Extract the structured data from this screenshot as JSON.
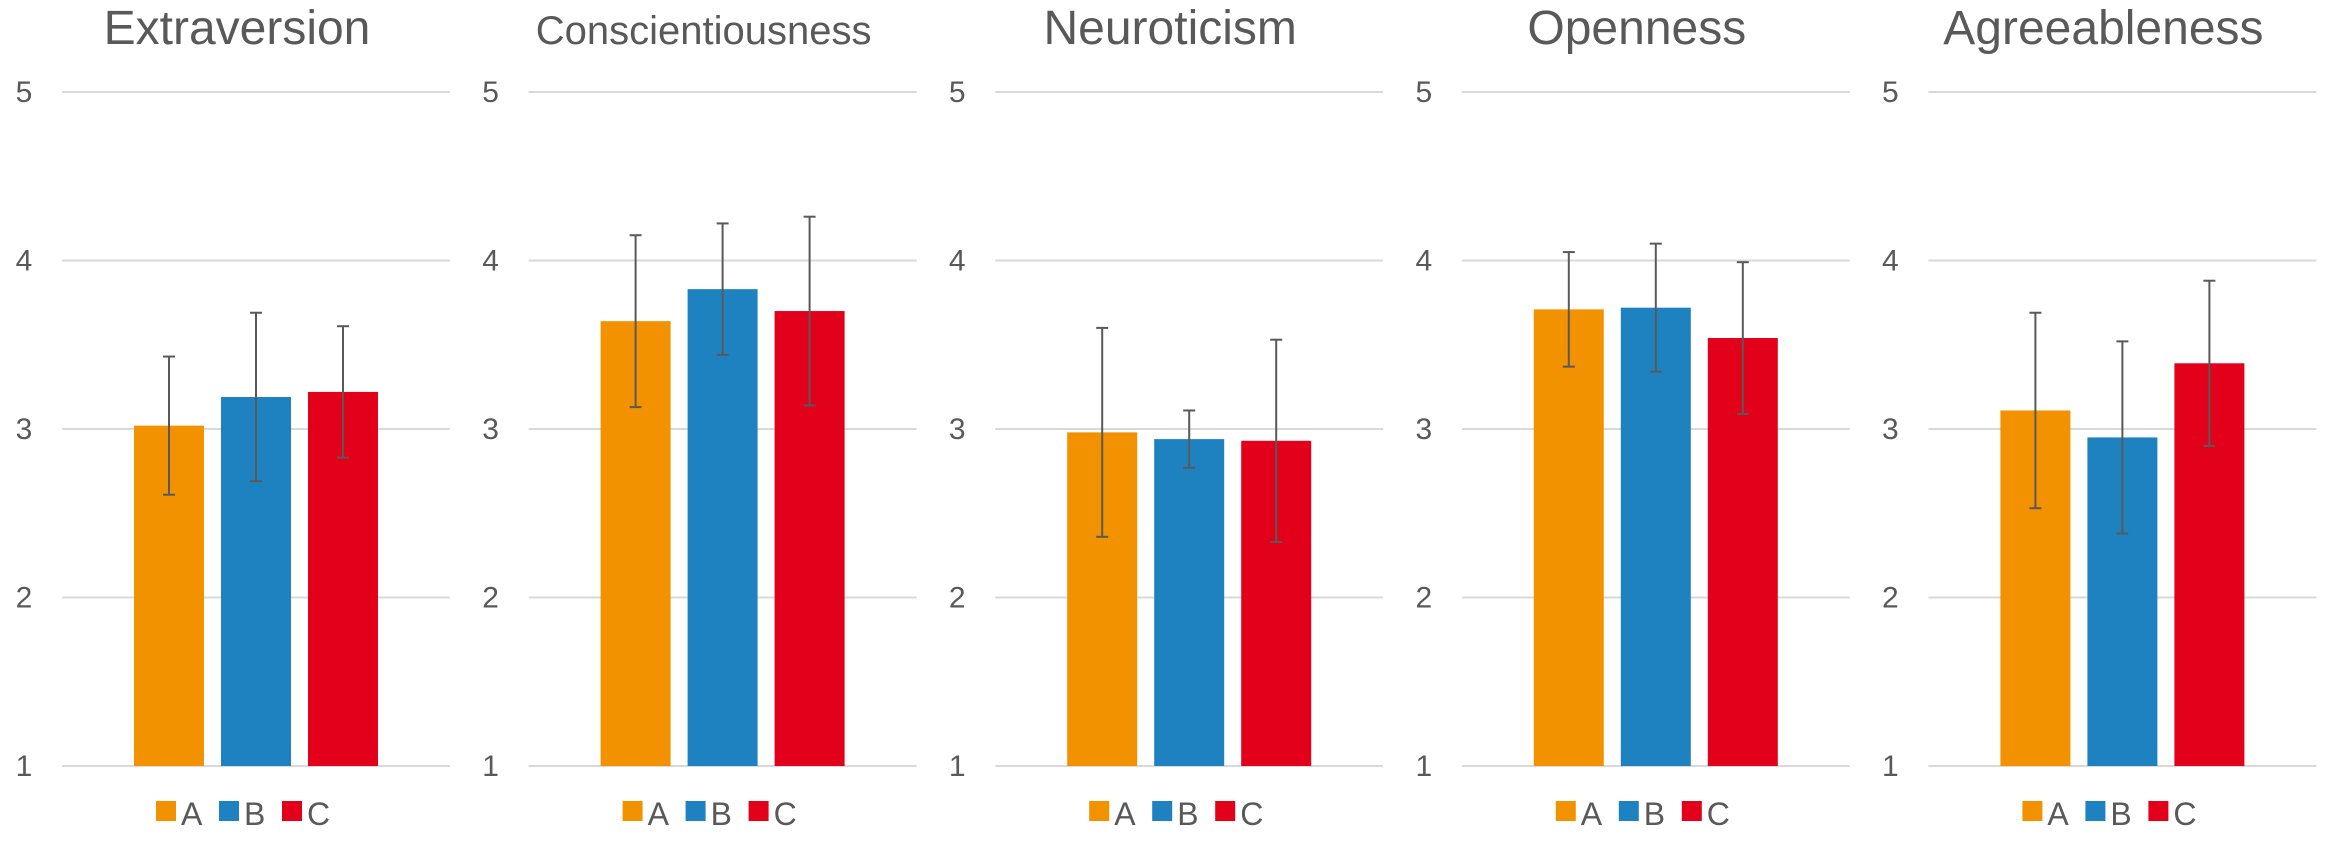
{
  "chart_data": [
    {
      "type": "bar",
      "title": "Extraversion",
      "categories": [
        "A",
        "B",
        "C"
      ],
      "values": [
        3.02,
        3.19,
        3.22
      ],
      "errors": [
        0.41,
        0.5,
        0.39
      ],
      "ylim": [
        1,
        5
      ],
      "yticks": [
        "1",
        "2",
        "3",
        "4",
        "5"
      ],
      "grid": true,
      "legend": "bottom"
    },
    {
      "type": "bar",
      "title": "Conscientiousness",
      "categories": [
        "A",
        "B",
        "C"
      ],
      "values": [
        3.64,
        3.83,
        3.7
      ],
      "errors": [
        0.51,
        0.39,
        0.56
      ],
      "ylim": [
        1,
        5
      ],
      "yticks": [
        "1",
        "2",
        "3",
        "4",
        "5"
      ],
      "grid": true,
      "legend": "bottom"
    },
    {
      "type": "bar",
      "title": "Neuroticism",
      "categories": [
        "A",
        "B",
        "C"
      ],
      "values": [
        2.98,
        2.94,
        2.93
      ],
      "errors": [
        0.62,
        0.17,
        0.6
      ],
      "ylim": [
        1,
        5
      ],
      "yticks": [
        "1",
        "2",
        "3",
        "4",
        "5"
      ],
      "grid": true,
      "legend": "bottom"
    },
    {
      "type": "bar",
      "title": "Openness",
      "categories": [
        "A",
        "B",
        "C"
      ],
      "values": [
        3.71,
        3.72,
        3.54
      ],
      "errors": [
        0.34,
        0.38,
        0.45
      ],
      "ylim": [
        1,
        5
      ],
      "yticks": [
        "1",
        "2",
        "3",
        "4",
        "5"
      ],
      "grid": true,
      "legend": "bottom"
    },
    {
      "type": "bar",
      "title": "Agreeableness",
      "categories": [
        "A",
        "B",
        "C"
      ],
      "values": [
        3.11,
        2.95,
        3.39
      ],
      "errors": [
        0.58,
        0.57,
        0.49
      ],
      "ylim": [
        1,
        5
      ],
      "yticks": [
        "1",
        "2",
        "3",
        "4",
        "5"
      ],
      "grid": true,
      "legend": "bottom"
    }
  ],
  "colors": {
    "A": "#F39200",
    "B": "#1F82C0",
    "C": "#E2001A",
    "grid": "#D9D9D9",
    "text": "#595959",
    "error_bar": "#595959"
  }
}
